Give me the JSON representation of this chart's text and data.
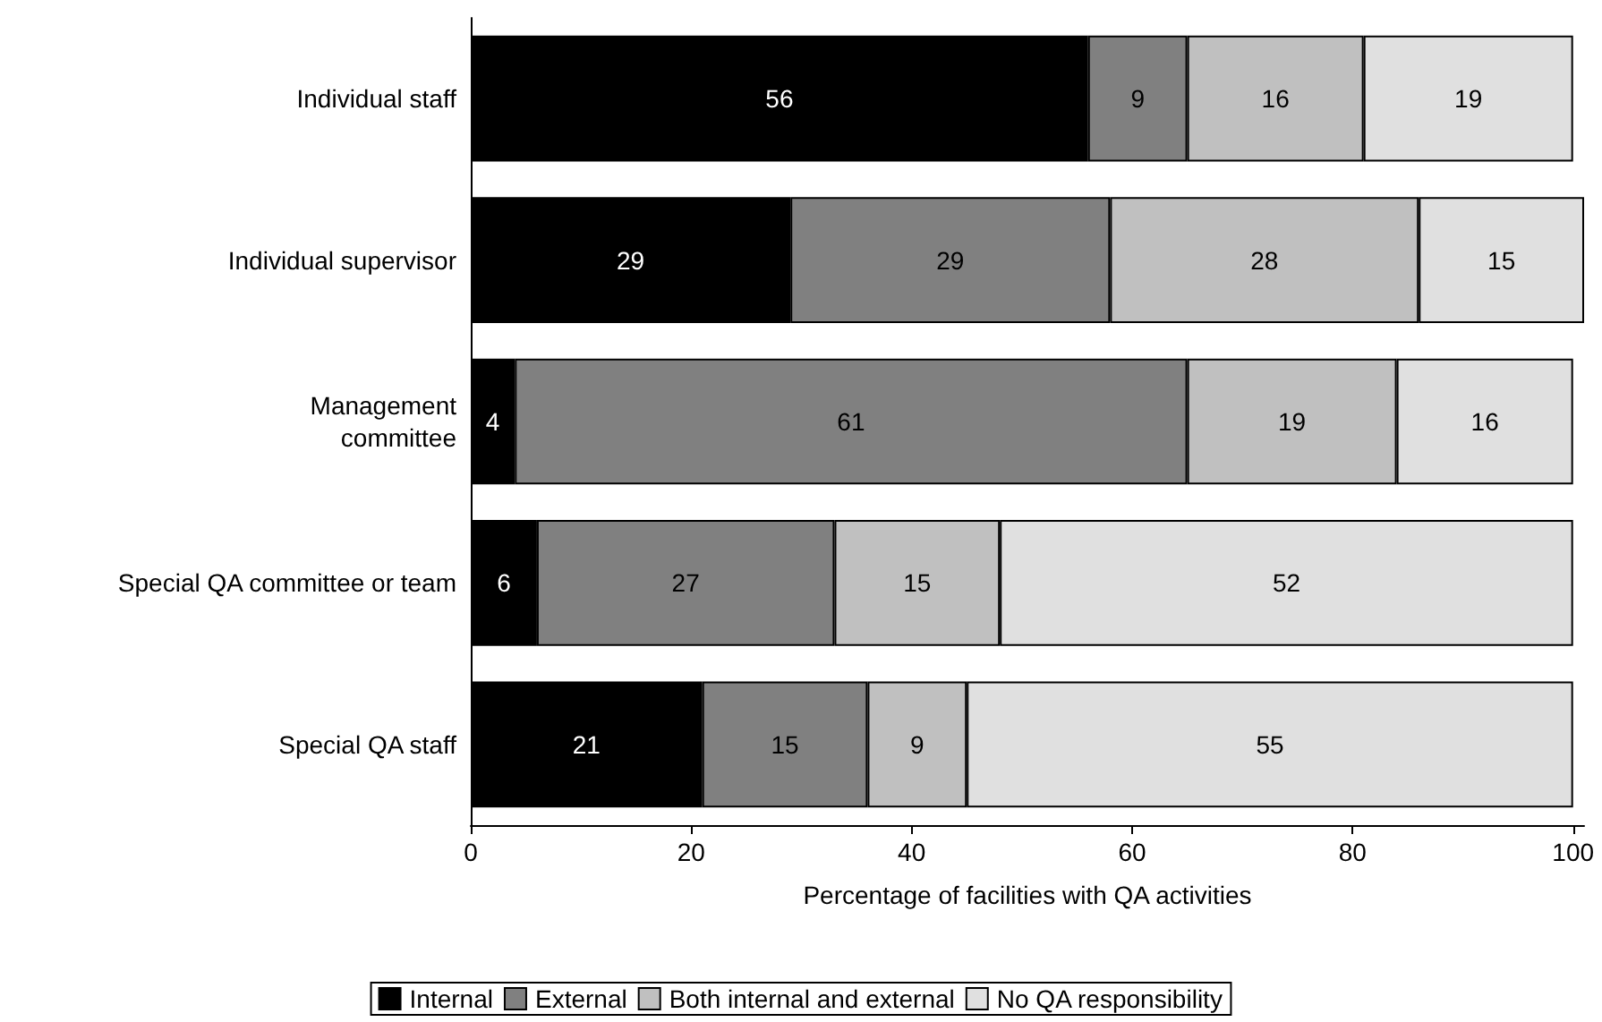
{
  "chart_data": {
    "type": "bar",
    "orientation": "horizontal",
    "stacked": true,
    "data_labels": true,
    "legend": "bottom",
    "grid": false,
    "xlabel": "Percentage of facilities with QA activities",
    "categories": [
      "Individual staff",
      "Individual supervisor",
      "Management\ncommittee",
      "Special QA committee or team",
      "Special QA staff"
    ],
    "xlim": [
      0,
      101
    ],
    "xticks": [
      0,
      20,
      40,
      60,
      80,
      100
    ],
    "series": [
      {
        "name": "Internal",
        "color": "#000000",
        "values": [
          56,
          29,
          4,
          6,
          21
        ]
      },
      {
        "name": "External",
        "color": "#808080",
        "values": [
          9,
          29,
          61,
          27,
          15
        ]
      },
      {
        "name": "Both internal and external",
        "color": "#c0c0c0",
        "values": [
          16,
          28,
          19,
          15,
          9
        ]
      },
      {
        "name": "No QA responsibility",
        "color": "#e0e0e0",
        "values": [
          19,
          15,
          16,
          52,
          55
        ]
      }
    ]
  }
}
